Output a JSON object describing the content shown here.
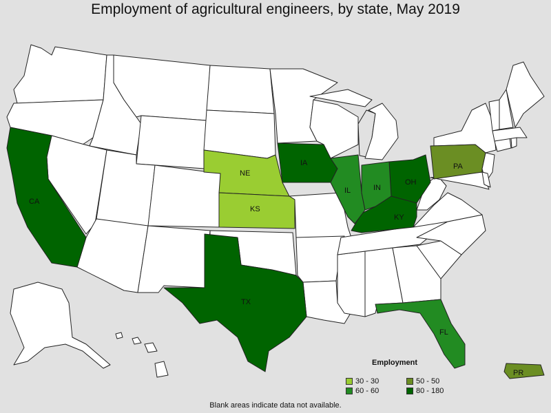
{
  "title": "Employment of agricultural engineers, by state, May 2019",
  "colors": {
    "background": "#e1e1e1",
    "no_data": "#ffffff",
    "bin_30_30": "#9acd32",
    "bin_50_50": "#6b8e23",
    "bin_60_60": "#228b22",
    "bin_80_180": "#006400"
  },
  "states": {
    "CA": {
      "label": "CA",
      "bin": "80 - 180"
    },
    "TX": {
      "label": "TX",
      "bin": "80 - 180"
    },
    "IA": {
      "label": "IA",
      "bin": "80 - 180"
    },
    "OH": {
      "label": "OH",
      "bin": "80 - 180"
    },
    "KY": {
      "label": "KY",
      "bin": "80 - 180"
    },
    "IL": {
      "label": "IL",
      "bin": "60 - 60"
    },
    "IN": {
      "label": "IN",
      "bin": "60 - 60"
    },
    "FL": {
      "label": "FL",
      "bin": "60 - 60"
    },
    "PA": {
      "label": "PA",
      "bin": "50 - 50"
    },
    "PR": {
      "label": "PR",
      "bin": "50 - 50"
    },
    "NE": {
      "label": "NE",
      "bin": "30 - 30"
    },
    "KS": {
      "label": "KS",
      "bin": "30 - 30"
    }
  },
  "legend": {
    "title": "Employment",
    "items": [
      {
        "label": "30 - 30",
        "color": "#9acd32"
      },
      {
        "label": "50 - 50",
        "color": "#6b8e23"
      },
      {
        "label": "60 - 60",
        "color": "#228b22"
      },
      {
        "label": "80 - 180",
        "color": "#006400"
      }
    ]
  },
  "footnote": "Blank areas indicate data not available."
}
